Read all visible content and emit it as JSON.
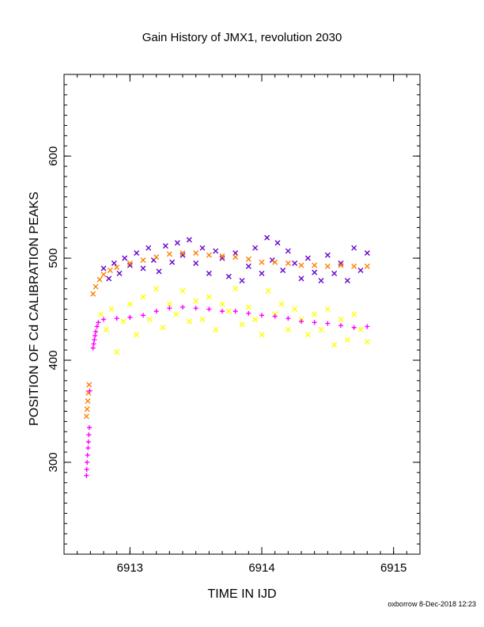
{
  "chart_data": {
    "type": "scatter",
    "title": "Gain History of JMX1, revolution 2030",
    "xlabel": "TIME IN IJD",
    "ylabel": "POSITION OF Cd CALIBRATION PEAKS",
    "xlim": [
      6912.5,
      6915.2
    ],
    "ylim": [
      210,
      680
    ],
    "x_ticks": [
      6913,
      6914,
      6915
    ],
    "x_tick_labels": [
      "6913",
      "6914",
      "6915"
    ],
    "x_minor_step": 0.1,
    "y_ticks": [
      300,
      400,
      500,
      600
    ],
    "y_tick_labels": [
      "300",
      "400",
      "500",
      "600"
    ],
    "y_minor_step": 10,
    "grid": false,
    "legend": "none",
    "series": [
      {
        "color": "#ff00ff",
        "marker": "plus",
        "x": [
          6912.67,
          6912.672,
          6912.675,
          6912.678,
          6912.682,
          6912.685,
          6912.688,
          6912.692,
          6912.695,
          6912.72,
          6912.725,
          6912.73,
          6912.735,
          6912.74,
          6912.75,
          6912.76,
          6912.8,
          6912.9,
          6913.0,
          6913.1,
          6913.2,
          6913.3,
          6913.4,
          6913.5,
          6913.6,
          6913.7,
          6913.8,
          6913.9,
          6914.0,
          6914.1,
          6914.2,
          6914.3,
          6914.4,
          6914.5,
          6914.6,
          6914.7,
          6914.8
        ],
        "y": [
          287,
          293,
          300,
          307,
          314,
          320,
          327,
          334,
          370,
          412,
          416,
          420,
          424,
          428,
          433,
          437,
          440,
          441,
          442,
          444,
          448,
          451,
          452,
          451,
          450,
          448,
          448,
          446,
          444,
          443,
          441,
          438,
          437,
          436,
          434,
          432,
          433
        ]
      },
      {
        "color": "#ff7f00",
        "marker": "cross",
        "x": [
          6912.67,
          6912.675,
          6912.68,
          6912.685,
          6912.69,
          6912.72,
          6912.74,
          6912.77,
          6912.8,
          6912.85,
          6912.9,
          6913.0,
          6913.1,
          6913.2,
          6913.3,
          6913.4,
          6913.5,
          6913.6,
          6913.7,
          6913.8,
          6913.9,
          6914.0,
          6914.1,
          6914.2,
          6914.3,
          6914.4,
          6914.5,
          6914.6,
          6914.7,
          6914.8
        ],
        "y": [
          345,
          352,
          360,
          368,
          376,
          465,
          472,
          479,
          484,
          488,
          491,
          495,
          498,
          501,
          504,
          505,
          505,
          503,
          502,
          501,
          499,
          496,
          496,
          495,
          493,
          493,
          492,
          493,
          492,
          492
        ]
      },
      {
        "color": "#6600cc",
        "marker": "cross",
        "x": [
          6912.8,
          6912.84,
          6912.88,
          6912.92,
          6912.96,
          6913.0,
          6913.05,
          6913.1,
          6913.14,
          6913.18,
          6913.22,
          6913.27,
          6913.32,
          6913.36,
          6913.4,
          6913.45,
          6913.5,
          6913.55,
          6913.6,
          6913.65,
          6913.7,
          6913.75,
          6913.8,
          6913.85,
          6913.9,
          6913.95,
          6914.0,
          6914.04,
          6914.08,
          6914.12,
          6914.16,
          6914.2,
          6914.25,
          6914.3,
          6914.35,
          6914.4,
          6914.45,
          6914.5,
          6914.55,
          6914.6,
          6914.65,
          6914.7,
          6914.75,
          6914.8
        ],
        "y": [
          490,
          480,
          495,
          485,
          500,
          493,
          505,
          490,
          510,
          498,
          487,
          512,
          496,
          515,
          503,
          518,
          495,
          510,
          485,
          507,
          500,
          482,
          505,
          478,
          492,
          510,
          485,
          520,
          498,
          515,
          488,
          507,
          495,
          480,
          500,
          486,
          478,
          503,
          485,
          495,
          478,
          510,
          488,
          505
        ]
      },
      {
        "color": "#ffff00",
        "marker": "cross",
        "x": [
          6912.78,
          6912.82,
          6912.86,
          6912.9,
          6912.95,
          6913.0,
          6913.05,
          6913.1,
          6913.15,
          6913.2,
          6913.25,
          6913.3,
          6913.35,
          6913.4,
          6913.45,
          6913.5,
          6913.55,
          6913.6,
          6913.65,
          6913.7,
          6913.75,
          6913.8,
          6913.85,
          6913.9,
          6913.95,
          6914.0,
          6914.05,
          6914.1,
          6914.15,
          6914.2,
          6914.25,
          6914.3,
          6914.35,
          6914.4,
          6914.45,
          6914.5,
          6914.55,
          6914.6,
          6914.65,
          6914.7,
          6914.75,
          6914.8
        ],
        "y": [
          445,
          430,
          450,
          408,
          438,
          455,
          425,
          462,
          440,
          470,
          432,
          455,
          445,
          468,
          438,
          458,
          440,
          462,
          430,
          455,
          448,
          470,
          435,
          452,
          440,
          425,
          468,
          445,
          455,
          430,
          450,
          440,
          425,
          445,
          430,
          450,
          415,
          440,
          420,
          445,
          430,
          418
        ]
      }
    ]
  },
  "footer": "oxborrow 8-Dec-2018 12:23"
}
